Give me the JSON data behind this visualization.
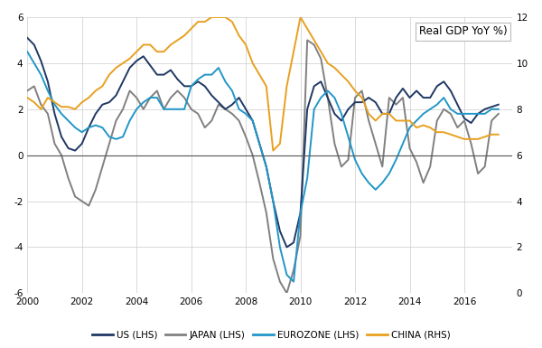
{
  "title": "Real GDP YoY %)",
  "xlim": [
    2000,
    2017.75
  ],
  "ylim_left": [
    -6,
    6
  ],
  "ylim_right": [
    0,
    12
  ],
  "yticks_left": [
    -6,
    -4,
    -2,
    0,
    2,
    4,
    6
  ],
  "yticks_right": [
    0,
    2,
    4,
    6,
    8,
    10,
    12
  ],
  "xticks": [
    2000,
    2002,
    2004,
    2006,
    2008,
    2010,
    2012,
    2014,
    2016
  ],
  "colors": {
    "US": "#1f3864",
    "JAPAN": "#808080",
    "EUROZONE": "#2196c8",
    "CHINA": "#e8a020"
  },
  "us": {
    "t": [
      2000.0,
      2000.25,
      2000.5,
      2000.75,
      2001.0,
      2001.25,
      2001.5,
      2001.75,
      2002.0,
      2002.25,
      2002.5,
      2002.75,
      2003.0,
      2003.25,
      2003.5,
      2003.75,
      2004.0,
      2004.25,
      2004.5,
      2004.75,
      2005.0,
      2005.25,
      2005.5,
      2005.75,
      2006.0,
      2006.25,
      2006.5,
      2006.75,
      2007.0,
      2007.25,
      2007.5,
      2007.75,
      2008.0,
      2008.25,
      2008.5,
      2008.75,
      2009.0,
      2009.25,
      2009.5,
      2009.75,
      2010.0,
      2010.25,
      2010.5,
      2010.75,
      2011.0,
      2011.25,
      2011.5,
      2011.75,
      2012.0,
      2012.25,
      2012.5,
      2012.75,
      2013.0,
      2013.25,
      2013.5,
      2013.75,
      2014.0,
      2014.25,
      2014.5,
      2014.75,
      2015.0,
      2015.25,
      2015.5,
      2015.75,
      2016.0,
      2016.25,
      2016.5,
      2016.75,
      2017.0,
      2017.25
    ],
    "v": [
      5.1,
      4.8,
      4.1,
      3.2,
      1.8,
      0.8,
      0.3,
      0.2,
      0.5,
      1.2,
      1.8,
      2.2,
      2.3,
      2.6,
      3.2,
      3.8,
      4.1,
      4.3,
      3.9,
      3.5,
      3.5,
      3.7,
      3.3,
      3.0,
      3.0,
      3.2,
      3.0,
      2.6,
      2.3,
      2.0,
      2.2,
      2.5,
      2.0,
      1.5,
      0.5,
      -0.5,
      -2.0,
      -3.3,
      -4.0,
      -3.8,
      -2.5,
      2.0,
      3.0,
      3.2,
      2.5,
      1.8,
      1.5,
      2.0,
      2.3,
      2.3,
      2.5,
      2.3,
      1.8,
      1.8,
      2.5,
      2.9,
      2.5,
      2.8,
      2.5,
      2.5,
      3.0,
      3.2,
      2.8,
      2.2,
      1.6,
      1.4,
      1.8,
      2.0,
      2.1,
      2.2
    ]
  },
  "japan": {
    "t": [
      2000.0,
      2000.25,
      2000.5,
      2000.75,
      2001.0,
      2001.25,
      2001.5,
      2001.75,
      2002.0,
      2002.25,
      2002.5,
      2002.75,
      2003.0,
      2003.25,
      2003.5,
      2003.75,
      2004.0,
      2004.25,
      2004.5,
      2004.75,
      2005.0,
      2005.25,
      2005.5,
      2005.75,
      2006.0,
      2006.25,
      2006.5,
      2006.75,
      2007.0,
      2007.25,
      2007.5,
      2007.75,
      2008.0,
      2008.25,
      2008.5,
      2008.75,
      2009.0,
      2009.25,
      2009.5,
      2009.75,
      2010.0,
      2010.25,
      2010.5,
      2010.75,
      2011.0,
      2011.25,
      2011.5,
      2011.75,
      2012.0,
      2012.25,
      2012.5,
      2012.75,
      2013.0,
      2013.25,
      2013.5,
      2013.75,
      2014.0,
      2014.25,
      2014.5,
      2014.75,
      2015.0,
      2015.25,
      2015.5,
      2015.75,
      2016.0,
      2016.25,
      2016.5,
      2016.75,
      2017.0,
      2017.25
    ],
    "v": [
      2.8,
      3.0,
      2.2,
      1.8,
      0.5,
      0.0,
      -1.0,
      -1.8,
      -2.0,
      -2.2,
      -1.5,
      -0.5,
      0.5,
      1.5,
      2.0,
      2.8,
      2.5,
      2.0,
      2.5,
      2.8,
      2.0,
      2.5,
      2.8,
      2.5,
      2.0,
      1.8,
      1.2,
      1.5,
      2.2,
      2.0,
      1.8,
      1.5,
      0.8,
      0.0,
      -1.2,
      -2.5,
      -4.5,
      -5.5,
      -6.0,
      -5.0,
      -3.5,
      5.0,
      4.8,
      4.2,
      2.5,
      0.5,
      -0.5,
      -0.2,
      2.5,
      2.8,
      1.5,
      0.5,
      -0.5,
      2.5,
      2.2,
      2.5,
      0.3,
      -0.3,
      -1.2,
      -0.5,
      1.5,
      2.0,
      1.8,
      1.2,
      1.5,
      0.5,
      -0.8,
      -0.5,
      1.5,
      1.8
    ]
  },
  "eurozone": {
    "t": [
      2000.0,
      2000.25,
      2000.5,
      2000.75,
      2001.0,
      2001.25,
      2001.5,
      2001.75,
      2002.0,
      2002.25,
      2002.5,
      2002.75,
      2003.0,
      2003.25,
      2003.5,
      2003.75,
      2004.0,
      2004.25,
      2004.5,
      2004.75,
      2005.0,
      2005.25,
      2005.5,
      2005.75,
      2006.0,
      2006.25,
      2006.5,
      2006.75,
      2007.0,
      2007.25,
      2007.5,
      2007.75,
      2008.0,
      2008.25,
      2008.5,
      2008.75,
      2009.0,
      2009.25,
      2009.5,
      2009.75,
      2010.0,
      2010.25,
      2010.5,
      2010.75,
      2011.0,
      2011.25,
      2011.5,
      2011.75,
      2012.0,
      2012.25,
      2012.5,
      2012.75,
      2013.0,
      2013.25,
      2013.5,
      2013.75,
      2014.0,
      2014.25,
      2014.5,
      2014.75,
      2015.0,
      2015.25,
      2015.5,
      2015.75,
      2016.0,
      2016.25,
      2016.5,
      2016.75,
      2017.0,
      2017.25
    ],
    "v": [
      4.5,
      4.0,
      3.5,
      2.8,
      2.2,
      1.8,
      1.5,
      1.2,
      1.0,
      1.2,
      1.3,
      1.2,
      0.8,
      0.7,
      0.8,
      1.5,
      2.0,
      2.3,
      2.5,
      2.5,
      2.0,
      2.0,
      2.0,
      2.0,
      3.0,
      3.3,
      3.5,
      3.5,
      3.8,
      3.2,
      2.8,
      2.0,
      1.8,
      1.5,
      0.5,
      -0.5,
      -2.0,
      -4.0,
      -5.2,
      -5.5,
      -2.5,
      -1.0,
      2.0,
      2.5,
      2.8,
      2.5,
      1.8,
      0.8,
      -0.2,
      -0.8,
      -1.2,
      -1.5,
      -1.2,
      -0.8,
      -0.2,
      0.5,
      1.2,
      1.5,
      1.8,
      2.0,
      2.2,
      2.5,
      2.0,
      1.8,
      1.8,
      1.8,
      1.8,
      1.8,
      2.0,
      2.0
    ]
  },
  "china": {
    "t": [
      2000.0,
      2000.25,
      2000.5,
      2000.75,
      2001.0,
      2001.25,
      2001.5,
      2001.75,
      2002.0,
      2002.25,
      2002.5,
      2002.75,
      2003.0,
      2003.25,
      2003.5,
      2003.75,
      2004.0,
      2004.25,
      2004.5,
      2004.75,
      2005.0,
      2005.25,
      2005.5,
      2005.75,
      2006.0,
      2006.25,
      2006.5,
      2006.75,
      2007.0,
      2007.25,
      2007.5,
      2007.75,
      2008.0,
      2008.25,
      2008.5,
      2008.75,
      2009.0,
      2009.25,
      2009.5,
      2009.75,
      2010.0,
      2010.25,
      2010.5,
      2010.75,
      2011.0,
      2011.25,
      2011.5,
      2011.75,
      2012.0,
      2012.25,
      2012.5,
      2012.75,
      2013.0,
      2013.25,
      2013.5,
      2013.75,
      2014.0,
      2014.25,
      2014.5,
      2014.75,
      2015.0,
      2015.25,
      2015.5,
      2015.75,
      2016.0,
      2016.25,
      2016.5,
      2016.75,
      2017.0,
      2017.25
    ],
    "v": [
      8.5,
      8.3,
      8.0,
      8.5,
      8.3,
      8.1,
      8.1,
      8.0,
      8.3,
      8.5,
      8.8,
      9.0,
      9.5,
      9.8,
      10.0,
      10.2,
      10.5,
      10.8,
      10.8,
      10.5,
      10.5,
      10.8,
      11.0,
      11.2,
      11.5,
      11.8,
      11.8,
      12.0,
      12.0,
      12.0,
      11.8,
      11.2,
      10.8,
      10.0,
      9.5,
      9.0,
      6.2,
      6.5,
      9.0,
      10.5,
      12.0,
      11.5,
      11.0,
      10.5,
      10.0,
      9.8,
      9.5,
      9.2,
      8.8,
      8.5,
      7.8,
      7.5,
      7.8,
      7.8,
      7.5,
      7.5,
      7.5,
      7.2,
      7.3,
      7.2,
      7.0,
      7.0,
      6.9,
      6.8,
      6.7,
      6.7,
      6.7,
      6.8,
      6.9,
      6.9
    ]
  }
}
